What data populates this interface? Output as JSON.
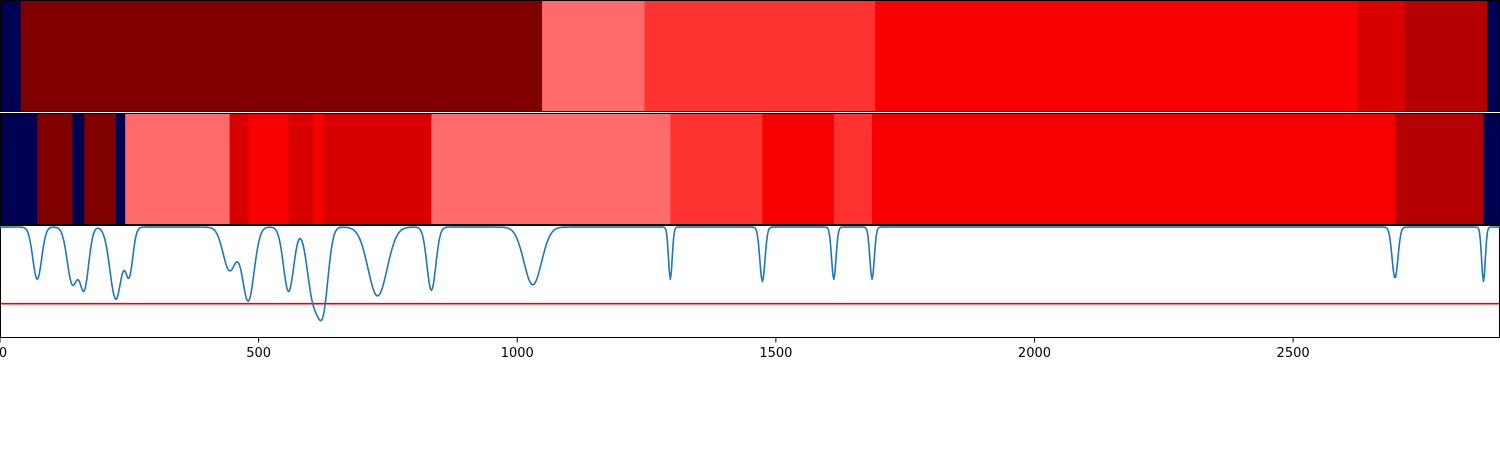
{
  "chart_data": {
    "type": "heatmap",
    "xlim": [
      0,
      2900
    ],
    "x_ticks": [
      0,
      500,
      1000,
      1500,
      2000,
      2500
    ],
    "x_tick_labels": [
      "0",
      "500",
      "1000",
      "1500",
      "2000",
      "2500"
    ],
    "colors": {
      "level_0": "#000050",
      "level_1": "#800000",
      "level_2": "#b40000",
      "level_3": "#d90000",
      "level_4": "#f60000",
      "level_5": "#ff3232",
      "level_6": "#ff6a6a",
      "curve": "#1f77b4",
      "threshold": "#e8000b"
    },
    "tracks": [
      {
        "segments": [
          {
            "start": 0,
            "end": 40,
            "level": 0
          },
          {
            "start": 40,
            "end": 1048,
            "level": 1
          },
          {
            "start": 1048,
            "end": 1246,
            "level": 6
          },
          {
            "start": 1246,
            "end": 1692,
            "level": 5
          },
          {
            "start": 1692,
            "end": 2625,
            "level": 4
          },
          {
            "start": 2625,
            "end": 2716,
            "level": 3
          },
          {
            "start": 2716,
            "end": 2875,
            "level": 2
          },
          {
            "start": 2875,
            "end": 2900,
            "level": 0
          }
        ]
      },
      {
        "segments": [
          {
            "start": 0,
            "end": 72,
            "level": 0
          },
          {
            "start": 72,
            "end": 140,
            "level": 1
          },
          {
            "start": 140,
            "end": 163,
            "level": 0
          },
          {
            "start": 163,
            "end": 224,
            "level": 1
          },
          {
            "start": 224,
            "end": 242,
            "level": 0
          },
          {
            "start": 242,
            "end": 444,
            "level": 6
          },
          {
            "start": 444,
            "end": 480,
            "level": 3
          },
          {
            "start": 480,
            "end": 558,
            "level": 4
          },
          {
            "start": 558,
            "end": 605,
            "level": 3
          },
          {
            "start": 605,
            "end": 625,
            "level": 4
          },
          {
            "start": 625,
            "end": 834,
            "level": 3
          },
          {
            "start": 834,
            "end": 1296,
            "level": 6
          },
          {
            "start": 1296,
            "end": 1474,
            "level": 5
          },
          {
            "start": 1474,
            "end": 1612,
            "level": 4
          },
          {
            "start": 1612,
            "end": 1686,
            "level": 5
          },
          {
            "start": 1686,
            "end": 2697,
            "level": 4
          },
          {
            "start": 2697,
            "end": 2868,
            "level": 2
          },
          {
            "start": 2868,
            "end": 2900,
            "level": 0
          }
        ]
      }
    ],
    "curve": {
      "ylim": [
        0,
        1
      ],
      "threshold": 0.3,
      "baseline": 0.99,
      "dips": [
        {
          "x": 72,
          "y": 0.52,
          "w": 12
        },
        {
          "x": 140,
          "y": 0.48,
          "w": 14
        },
        {
          "x": 163,
          "y": 0.45,
          "w": 12
        },
        {
          "x": 224,
          "y": 0.34,
          "w": 16
        },
        {
          "x": 250,
          "y": 0.58,
          "w": 10
        },
        {
          "x": 444,
          "y": 0.6,
          "w": 18
        },
        {
          "x": 480,
          "y": 0.33,
          "w": 16
        },
        {
          "x": 558,
          "y": 0.41,
          "w": 14
        },
        {
          "x": 605,
          "y": 0.38,
          "w": 16
        },
        {
          "x": 625,
          "y": 0.32,
          "w": 14
        },
        {
          "x": 730,
          "y": 0.37,
          "w": 26
        },
        {
          "x": 834,
          "y": 0.42,
          "w": 12
        },
        {
          "x": 1030,
          "y": 0.47,
          "w": 24
        },
        {
          "x": 1296,
          "y": 0.52,
          "w": 5
        },
        {
          "x": 1474,
          "y": 0.5,
          "w": 7
        },
        {
          "x": 1612,
          "y": 0.52,
          "w": 6
        },
        {
          "x": 1686,
          "y": 0.52,
          "w": 6
        },
        {
          "x": 2697,
          "y": 0.53,
          "w": 8
        },
        {
          "x": 2868,
          "y": 0.5,
          "w": 5
        }
      ]
    }
  }
}
